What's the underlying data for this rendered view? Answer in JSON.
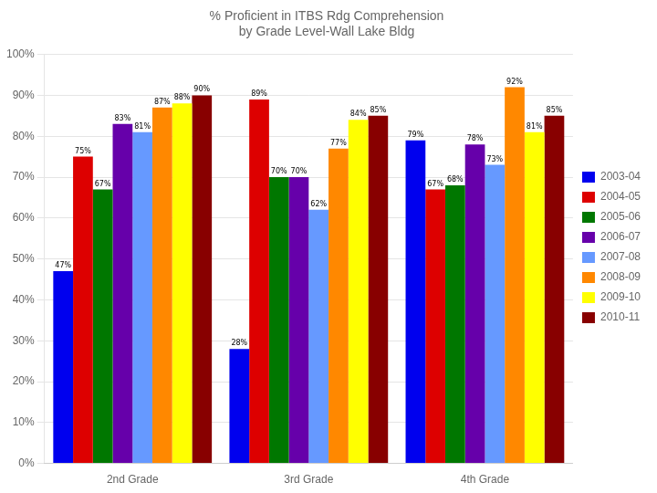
{
  "chart_data": {
    "type": "bar",
    "title": "% Proficient in ITBS Rdg Comprehension\nby Grade Level-Wall Lake Bldg",
    "categories": [
      "2nd Grade",
      "3rd Grade",
      "4th Grade"
    ],
    "series": [
      {
        "name": "2003-04",
        "color": "#0000EE",
        "values": [
          47,
          28,
          79
        ],
        "value_labels": [
          "47%",
          "28%",
          "79%"
        ]
      },
      {
        "name": "2004-05",
        "color": "#DD0000",
        "values": [
          75,
          89,
          67
        ],
        "value_labels": [
          "75%",
          "89%",
          "67%"
        ]
      },
      {
        "name": "2005-06",
        "color": "#007700",
        "values": [
          67,
          70,
          68
        ],
        "value_labels": [
          "67%",
          "70%",
          "68%"
        ]
      },
      {
        "name": "2006-07",
        "color": "#6600AA",
        "values": [
          83,
          70,
          78
        ],
        "value_labels": [
          "83%",
          "70%",
          "78%"
        ]
      },
      {
        "name": "2007-08",
        "color": "#6699FF",
        "values": [
          81,
          62,
          73
        ],
        "value_labels": [
          "81%",
          "62%",
          "73%"
        ]
      },
      {
        "name": "2008-09",
        "color": "#FF8800",
        "values": [
          87,
          77,
          92
        ],
        "value_labels": [
          "87%",
          "77%",
          "92%"
        ]
      },
      {
        "name": "2009-10",
        "color": "#FFFF00",
        "values": [
          88,
          84,
          81
        ],
        "value_labels": [
          "88%",
          "84%",
          "81%"
        ]
      },
      {
        "name": "2010-11",
        "color": "#880000",
        "values": [
          90,
          85,
          85
        ],
        "value_labels": [
          "90%",
          "85%",
          "85%"
        ]
      }
    ],
    "ylim": [
      0,
      100
    ],
    "yticks": [
      {
        "value": 0,
        "label": "0%"
      },
      {
        "value": 10,
        "label": "10%"
      },
      {
        "value": 20,
        "label": "20%"
      },
      {
        "value": 30,
        "label": "30%"
      },
      {
        "value": 40,
        "label": "40%"
      },
      {
        "value": 50,
        "label": "50%"
      },
      {
        "value": 60,
        "label": "60%"
      },
      {
        "value": 70,
        "label": "70%"
      },
      {
        "value": 80,
        "label": "80%"
      },
      {
        "value": 90,
        "label": "90%"
      },
      {
        "value": 100,
        "label": "100%"
      }
    ],
    "grid": true,
    "legend": "right",
    "data_labels": true
  }
}
